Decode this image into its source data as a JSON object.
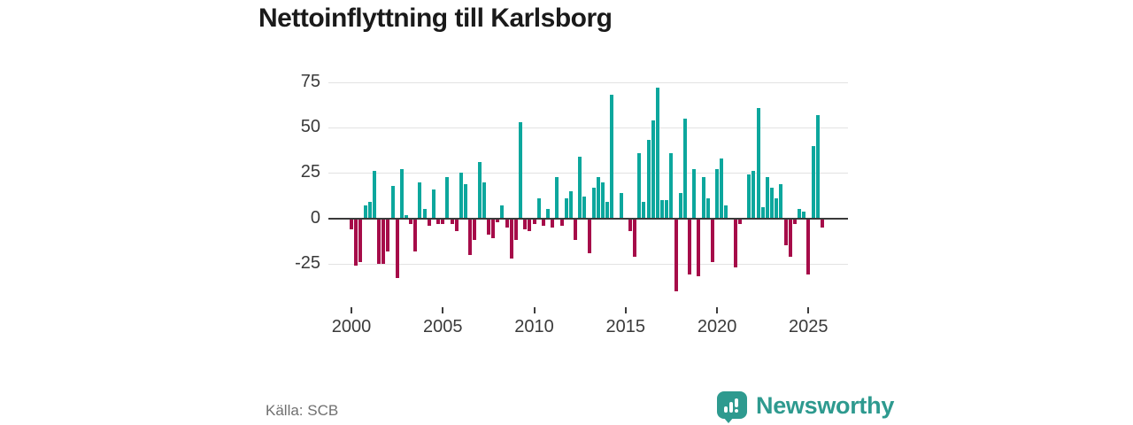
{
  "title": "Nettoinflyttning till Karlsborg",
  "source": "Källa: SCB",
  "branding": {
    "name": "Newsworthy",
    "logo_icon": "newsworthy-speech-bubble-chart-icon"
  },
  "colors": {
    "positive_bar": "#0ca79d",
    "negative_bar": "#a60c49",
    "brand_teal": "#2e9a8f",
    "zero_line": "#3a3a3a",
    "gridline": "#e2e2e2",
    "title_text": "#1a1a1a",
    "axis_text": "#3a3a3a",
    "source_text": "#707070"
  },
  "chart_data": {
    "type": "bar",
    "title": "Nettoinflyttning till Karlsborg",
    "frequency": "quarterly",
    "start_year": 2000,
    "x_tick_labels": [
      "2000",
      "2005",
      "2010",
      "2015",
      "2020",
      "2025"
    ],
    "y_tick_labels": [
      "75",
      "50",
      "25",
      "0",
      "-25"
    ],
    "y_ticks": [
      75,
      50,
      25,
      0,
      -25
    ],
    "ylim": [
      -45,
      80
    ],
    "grid": true,
    "values": [
      -6,
      -26,
      -24,
      7,
      9,
      26,
      -25,
      -25,
      -18,
      18,
      -33,
      27,
      2,
      -3,
      -18,
      20,
      5,
      -4,
      16,
      -3,
      -3,
      23,
      -3,
      -7,
      25,
      19,
      -20,
      -12,
      31,
      20,
      -9,
      -11,
      -2,
      7,
      -5,
      -22,
      -12,
      53,
      -6,
      -7,
      -3,
      11,
      -4,
      5,
      -5,
      23,
      -4,
      11,
      15,
      -12,
      34,
      12,
      -19,
      17,
      23,
      20,
      9,
      68,
      0,
      14,
      0,
      -7,
      -21,
      36,
      9,
      43,
      54,
      72,
      10,
      10,
      36,
      -40,
      14,
      55,
      -31,
      27,
      -32,
      23,
      11,
      -24,
      27,
      33,
      7,
      0,
      -27,
      -3,
      0,
      24,
      26,
      61,
      6,
      23,
      17,
      11,
      19,
      -15,
      -21,
      -3,
      5,
      4,
      -31,
      40,
      57,
      -5
    ]
  }
}
